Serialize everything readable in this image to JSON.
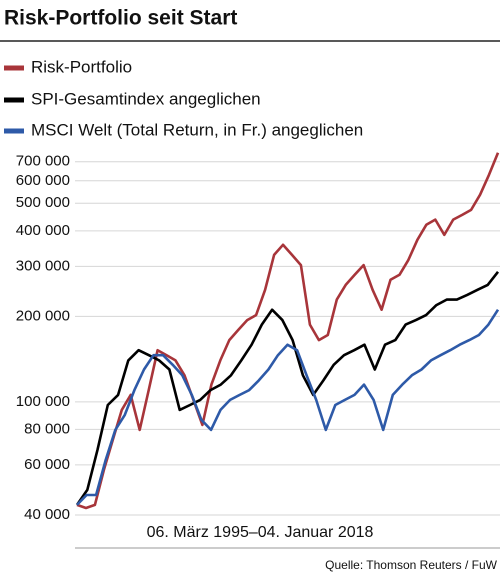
{
  "chart_data": {
    "type": "line",
    "title": "Risk-Portfolio seit Start",
    "x_label": "06. März 1995–04. Januar 2018",
    "source": "Quelle: Thomson Reuters / FuW",
    "log_scale": true,
    "grid": true,
    "legend": "top",
    "ylim": [
      30600,
      770000
    ],
    "yticks": [
      {
        "value": 40000,
        "label": "40 000"
      },
      {
        "value": 60000,
        "label": "60 000"
      },
      {
        "value": 80000,
        "label": "80 000"
      },
      {
        "value": 100000,
        "label": "100 000"
      },
      {
        "value": 200000,
        "label": "200 000"
      },
      {
        "value": 300000,
        "label": "300 000"
      },
      {
        "value": 400000,
        "label": "400 000"
      },
      {
        "value": 500000,
        "label": "500 000"
      },
      {
        "value": 600000,
        "label": "600 000"
      },
      {
        "value": 700000,
        "label": "700 000"
      }
    ],
    "series": [
      {
        "name": "Risk-Portfolio",
        "color": "#a8353a",
        "values": [
          43400,
          42300,
          43400,
          57600,
          73500,
          93700,
          105800,
          79700,
          110000,
          152000,
          146000,
          140000,
          124000,
          101600,
          83000,
          115000,
          140000,
          165000,
          179000,
          194000,
          202000,
          248000,
          329000,
          357000,
          329000,
          303000,
          187000,
          165000,
          172000,
          229000,
          258000,
          280000,
          303000,
          248000,
          211000,
          269000,
          280000,
          316000,
          372000,
          420000,
          438000,
          387000,
          438000,
          455000,
          474000,
          536000,
          630000,
          753000
        ]
      },
      {
        "name": "SPI-Gesamtindex angeglichen",
        "color": "#000000",
        "values": [
          43400,
          49000,
          67800,
          97500,
          105800,
          140000,
          152000,
          146000,
          140000,
          130000,
          93700,
          97500,
          101600,
          110000,
          115000,
          124000,
          140000,
          159000,
          187000,
          211000,
          194000,
          165000,
          124000,
          105800,
          119000,
          135000,
          146000,
          152000,
          159000,
          130000,
          159000,
          165000,
          187000,
          194000,
          202000,
          219000,
          229000,
          229000,
          238000,
          248000,
          258000,
          287000
        ]
      },
      {
        "name": "MSCI Welt (Total Return, in Fr.) angeglichen",
        "color": "#2e5aa8",
        "values": [
          43400,
          47000,
          47000,
          62500,
          79700,
          90000,
          110000,
          130000,
          146000,
          146000,
          135000,
          124000,
          105800,
          86500,
          79700,
          93700,
          101600,
          105800,
          110000,
          119000,
          130000,
          146000,
          159000,
          152000,
          124000,
          101600,
          79700,
          97500,
          101600,
          105800,
          115000,
          101600,
          79700,
          105800,
          115000,
          124000,
          130000,
          140000,
          146000,
          152000,
          159000,
          165000,
          172000,
          187000,
          211000
        ]
      }
    ]
  }
}
